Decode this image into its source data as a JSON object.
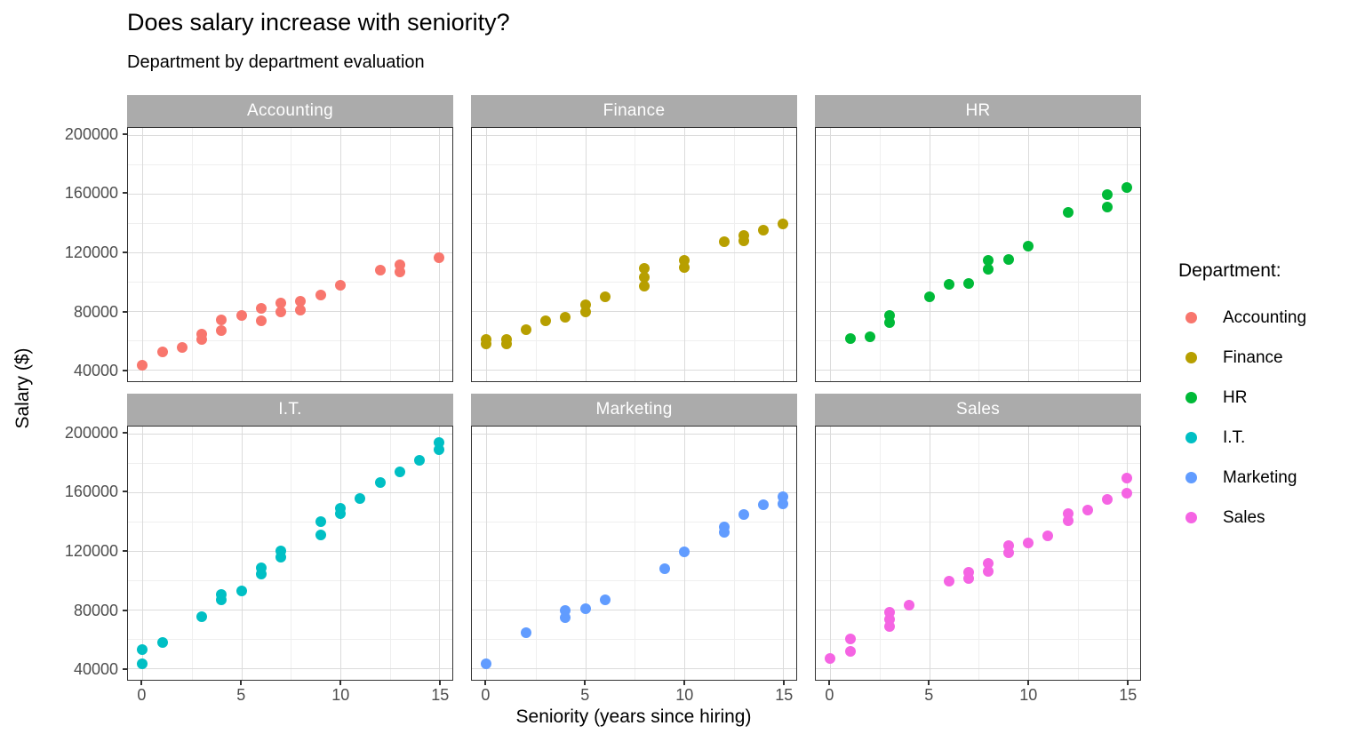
{
  "chart_data": {
    "type": "scatter",
    "title": "Does salary increase with seniority?",
    "subtitle": "Department by department evaluation",
    "xlabel": "Seniority (years since hiring)",
    "ylabel": "Salary ($)",
    "legend_title": "Department:",
    "legend_position": "right",
    "grid": true,
    "xlim": [
      0,
      15
    ],
    "ylim": [
      40000,
      200000
    ],
    "x_ticks": [
      0,
      5,
      10,
      15
    ],
    "x_minor_ticks": [
      2.5,
      7.5,
      12.5
    ],
    "y_ticks": [
      40000,
      80000,
      120000,
      160000,
      200000
    ],
    "y_minor_ticks": [
      60000,
      100000,
      140000,
      180000
    ],
    "facet_layout": {
      "rows": 2,
      "cols": 3
    },
    "facets": [
      {
        "label": "Accounting",
        "color": "#F8766D",
        "points": [
          [
            0,
            43000
          ],
          [
            1,
            52500
          ],
          [
            2,
            55500
          ],
          [
            3,
            61000
          ],
          [
            3,
            64500
          ],
          [
            4,
            67000
          ],
          [
            4,
            74000
          ],
          [
            5,
            77000
          ],
          [
            6,
            73500
          ],
          [
            6,
            82000
          ],
          [
            7,
            79500
          ],
          [
            7,
            85500
          ],
          [
            8,
            81000
          ],
          [
            8,
            86500
          ],
          [
            9,
            91000
          ],
          [
            10,
            97500
          ],
          [
            12,
            108000
          ],
          [
            13,
            107000
          ],
          [
            13,
            111500
          ],
          [
            15,
            116500
          ]
        ]
      },
      {
        "label": "Finance",
        "color": "#B79F00",
        "points": [
          [
            0,
            58000
          ],
          [
            0,
            60500
          ],
          [
            1,
            58000
          ],
          [
            1,
            60500
          ],
          [
            2,
            67500
          ],
          [
            3,
            73500
          ],
          [
            4,
            76000
          ],
          [
            5,
            79500
          ],
          [
            5,
            84500
          ],
          [
            6,
            89500
          ],
          [
            8,
            97000
          ],
          [
            8,
            103000
          ],
          [
            8,
            109000
          ],
          [
            10,
            110000
          ],
          [
            10,
            114500
          ],
          [
            12,
            127000
          ],
          [
            13,
            128000
          ],
          [
            13,
            131500
          ],
          [
            14,
            135000
          ],
          [
            15,
            139500
          ]
        ]
      },
      {
        "label": "HR",
        "color": "#00BA38",
        "points": [
          [
            1,
            61500
          ],
          [
            2,
            62500
          ],
          [
            3,
            72000
          ],
          [
            3,
            77000
          ],
          [
            5,
            90000
          ],
          [
            6,
            98000
          ],
          [
            7,
            99000
          ],
          [
            8,
            108500
          ],
          [
            8,
            114500
          ],
          [
            9,
            115000
          ],
          [
            10,
            124000
          ],
          [
            12,
            147000
          ],
          [
            14,
            151000
          ],
          [
            14,
            159500
          ],
          [
            15,
            164000
          ]
        ]
      },
      {
        "label": "I.T.",
        "color": "#00BFC4",
        "points": [
          [
            0,
            43000
          ],
          [
            0,
            53000
          ],
          [
            1,
            57500
          ],
          [
            3,
            75500
          ],
          [
            4,
            86500
          ],
          [
            4,
            90500
          ],
          [
            5,
            93000
          ],
          [
            6,
            104000
          ],
          [
            6,
            108500
          ],
          [
            7,
            115500
          ],
          [
            7,
            120000
          ],
          [
            9,
            131000
          ],
          [
            9,
            140000
          ],
          [
            10,
            145500
          ],
          [
            10,
            149000
          ],
          [
            11,
            155500
          ],
          [
            12,
            166500
          ],
          [
            13,
            174000
          ],
          [
            14,
            181500
          ],
          [
            15,
            189000
          ],
          [
            15,
            194000
          ]
        ]
      },
      {
        "label": "Marketing",
        "color": "#619CFF",
        "points": [
          [
            0,
            43000
          ],
          [
            2,
            64500
          ],
          [
            4,
            74500
          ],
          [
            4,
            79500
          ],
          [
            5,
            80500
          ],
          [
            6,
            87000
          ],
          [
            9,
            108000
          ],
          [
            10,
            119500
          ],
          [
            12,
            132500
          ],
          [
            12,
            136500
          ],
          [
            13,
            145000
          ],
          [
            14,
            151500
          ],
          [
            15,
            152000
          ],
          [
            15,
            157000
          ]
        ]
      },
      {
        "label": "Sales",
        "color": "#F564E3",
        "points": [
          [
            0,
            47000
          ],
          [
            1,
            52000
          ],
          [
            1,
            60000
          ],
          [
            3,
            68500
          ],
          [
            3,
            73500
          ],
          [
            3,
            78500
          ],
          [
            4,
            83000
          ],
          [
            6,
            99500
          ],
          [
            7,
            101000
          ],
          [
            7,
            105500
          ],
          [
            8,
            106000
          ],
          [
            8,
            111500
          ],
          [
            9,
            118500
          ],
          [
            9,
            123500
          ],
          [
            10,
            125500
          ],
          [
            11,
            130500
          ],
          [
            12,
            140500
          ],
          [
            12,
            145500
          ],
          [
            13,
            148000
          ],
          [
            14,
            155000
          ],
          [
            15,
            159500
          ],
          [
            15,
            169500
          ]
        ]
      }
    ],
    "theme": {
      "background": "#FFFFFF",
      "strip_fill": "#ABABAB",
      "strip_text_color": "#FFFFFF",
      "panel_border": "#333333",
      "grid_major": "#DBDBDB",
      "grid_minor": "#EFEFEF",
      "tick_label_color": "#4D4D4D",
      "tick_mark_color": "#333333",
      "text_color": "#000000"
    }
  }
}
